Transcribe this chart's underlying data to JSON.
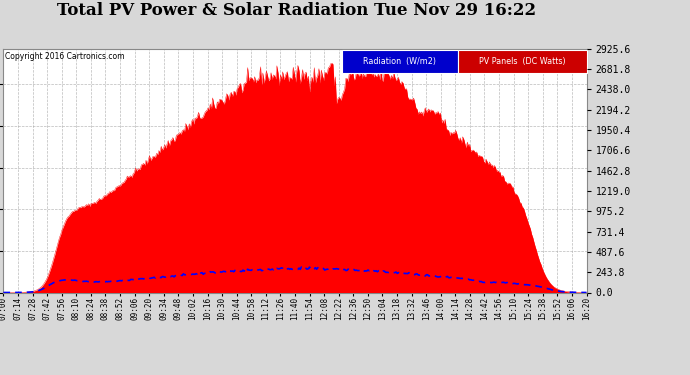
{
  "title": "Total PV Power & Solar Radiation Tue Nov 29 16:22",
  "copyright": "Copyright 2016 Cartronics.com",
  "y_ticks": [
    0.0,
    243.8,
    487.6,
    731.4,
    975.2,
    1219.0,
    1462.8,
    1706.6,
    1950.4,
    2194.2,
    2438.0,
    2681.8,
    2925.6
  ],
  "ymax": 2925.6,
  "plot_bg": "#ffffff",
  "outer_bg": "#d8d8d8",
  "grid_color": "#aaaaaa",
  "pv_color": "#ff0000",
  "rad_color": "#0000ff",
  "legend_rad_bg": "#0000cc",
  "legend_pv_bg": "#cc0000",
  "title_fontsize": 13,
  "x_labels": [
    "07:00",
    "07:14",
    "07:28",
    "07:42",
    "07:56",
    "08:10",
    "08:24",
    "08:38",
    "08:52",
    "09:06",
    "09:20",
    "09:34",
    "09:48",
    "10:02",
    "10:16",
    "10:30",
    "10:44",
    "10:58",
    "11:12",
    "11:26",
    "11:40",
    "11:54",
    "12:08",
    "12:22",
    "12:36",
    "12:50",
    "13:04",
    "13:18",
    "13:32",
    "13:46",
    "14:00",
    "14:14",
    "14:28",
    "14:42",
    "14:56",
    "15:10",
    "15:24",
    "15:38",
    "15:52",
    "16:06",
    "16:20"
  ]
}
